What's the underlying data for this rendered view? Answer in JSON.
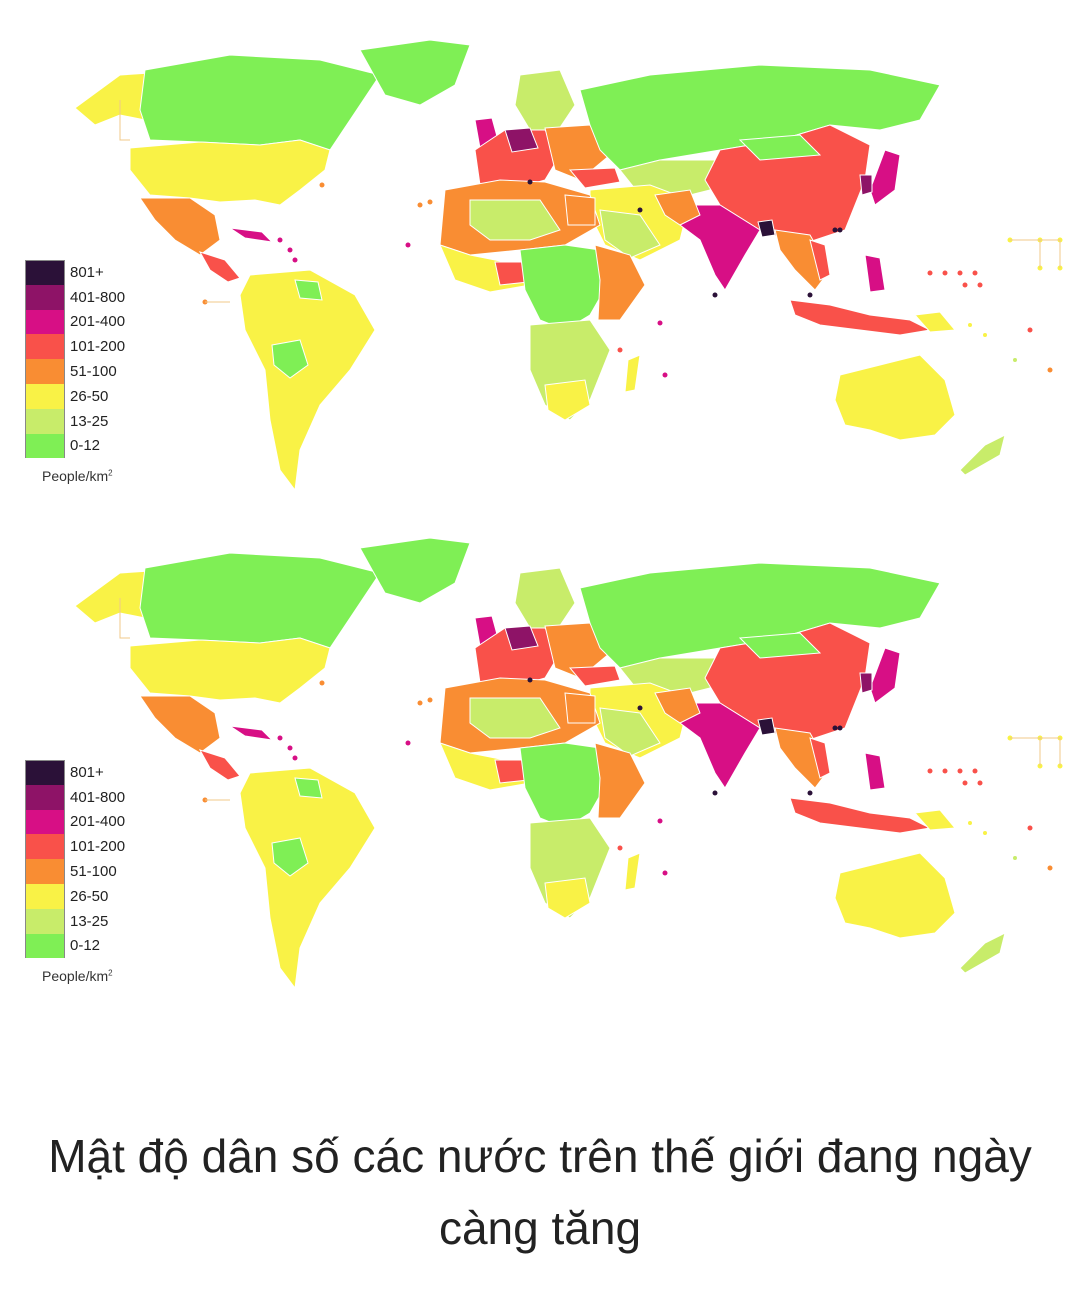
{
  "maps": [
    {
      "legend": {
        "entries": [
          {
            "label": "801+",
            "color": "#2b1138"
          },
          {
            "label": "401-800",
            "color": "#8e1367"
          },
          {
            "label": "201-400",
            "color": "#d70f85"
          },
          {
            "label": "101-200",
            "color": "#f9514a"
          },
          {
            "label": "51-100",
            "color": "#f98d33"
          },
          {
            "label": "26-50",
            "color": "#f9f246"
          },
          {
            "label": "13-25",
            "color": "#c8ec6a"
          },
          {
            "label": "0-12",
            "color": "#7fef55"
          }
        ],
        "unit": "People/km",
        "unit_superscript": "2"
      }
    },
    {
      "legend": {
        "entries": [
          {
            "label": "801+",
            "color": "#2b1138"
          },
          {
            "label": "401-800",
            "color": "#8e1367"
          },
          {
            "label": "201-400",
            "color": "#d70f85"
          },
          {
            "label": "101-200",
            "color": "#f9514a"
          },
          {
            "label": "51-100",
            "color": "#f98d33"
          },
          {
            "label": "26-50",
            "color": "#f9f246"
          },
          {
            "label": "13-25",
            "color": "#c8ec6a"
          },
          {
            "label": "0-12",
            "color": "#7fef55"
          }
        ],
        "unit": "People/km",
        "unit_superscript": "2"
      }
    }
  ],
  "caption": "Mật độ dân số các nước trên thế giới đang ngày càng tăng"
}
